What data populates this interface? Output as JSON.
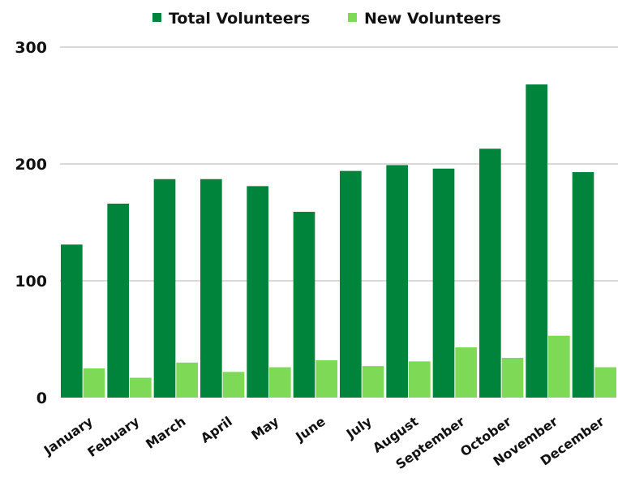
{
  "chart_data": {
    "type": "bar",
    "categories": [
      "January",
      "Febuary",
      "March",
      "April",
      "May",
      "June",
      "July",
      "August",
      "September",
      "October",
      "November",
      "December"
    ],
    "series": [
      {
        "name": "Total Volunteers",
        "color": "#00833a",
        "values": [
          131,
          166,
          187,
          187,
          181,
          159,
          194,
          199,
          196,
          213,
          268,
          193
        ]
      },
      {
        "name": "New Volunteers",
        "color": "#7ed957",
        "values": [
          25,
          17,
          30,
          22,
          26,
          32,
          27,
          31,
          43,
          34,
          53,
          26
        ]
      }
    ],
    "yticks": [
      "0",
      "100",
      "200",
      "300"
    ],
    "ylim": [
      0,
      300
    ],
    "grid": true,
    "legend_position": "top"
  }
}
